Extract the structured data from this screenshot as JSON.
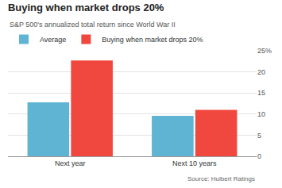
{
  "chart_data": {
    "type": "bar",
    "title": "Buying when market drops 20%",
    "subtitle": "S&P 500's annualized total return since World War II",
    "annotations": [
      "Source: Hulbert Ratings"
    ],
    "categories": [
      "Next year",
      "Next 10 years"
    ],
    "series": [
      {
        "name": "Average",
        "color": "#5fb4d3",
        "values": [
          12.8,
          9.6
        ]
      },
      {
        "name": "Buying when market drops 20%",
        "color": "#f0483e",
        "values": [
          22.7,
          11.0
        ]
      }
    ],
    "ylim": [
      0,
      25
    ],
    "yticks": [
      0,
      5,
      10,
      15,
      20,
      {
        "value": 25,
        "label": "25%"
      }
    ],
    "grid": true,
    "legend": "top-left"
  }
}
